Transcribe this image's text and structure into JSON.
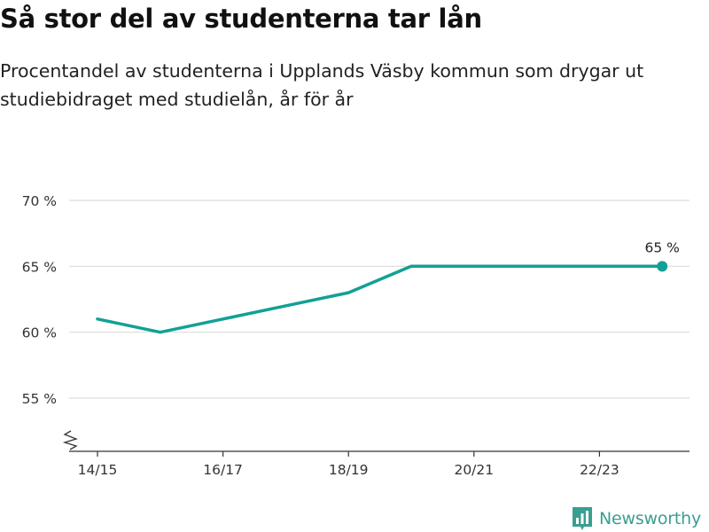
{
  "header": {
    "title": "Så stor del av studenterna tar lån",
    "subtitle": "Procentandel av studenterna i Upplands Väsby kommun som drygar ut studiebidraget med studielån, år för år"
  },
  "brand": {
    "name": "Newsworthy",
    "icon": "bar-chart-logo-icon"
  },
  "colors": {
    "line": "#12a096",
    "grid": "#dddddd",
    "axis": "#333333",
    "brand": "#3a9e91"
  },
  "chart_data": {
    "type": "line",
    "title": "Så stor del av studenterna tar lån",
    "subtitle": "Procentandel av studenterna i Upplands Väsby kommun som drygar ut studiebidraget med studielån, år för år",
    "xlabel": "",
    "ylabel": "",
    "categories": [
      "14/15",
      "15/16",
      "16/17",
      "17/18",
      "18/19",
      "19/20",
      "20/21",
      "21/22",
      "22/23",
      "23/24"
    ],
    "x_tick_labels": [
      "14/15",
      "16/17",
      "18/19",
      "20/21",
      "22/23"
    ],
    "series": [
      {
        "values": [
          61,
          60,
          61,
          62,
          63,
          65,
          65,
          65,
          65,
          65
        ]
      }
    ],
    "ylim": [
      52,
      70
    ],
    "y_ticks": [
      55,
      60,
      65,
      70
    ],
    "y_tick_labels": [
      "55 %",
      "60 %",
      "65 %",
      "70 %"
    ],
    "y_axis_break": true,
    "grid": true,
    "legend": "none",
    "end_label": "65 %"
  }
}
